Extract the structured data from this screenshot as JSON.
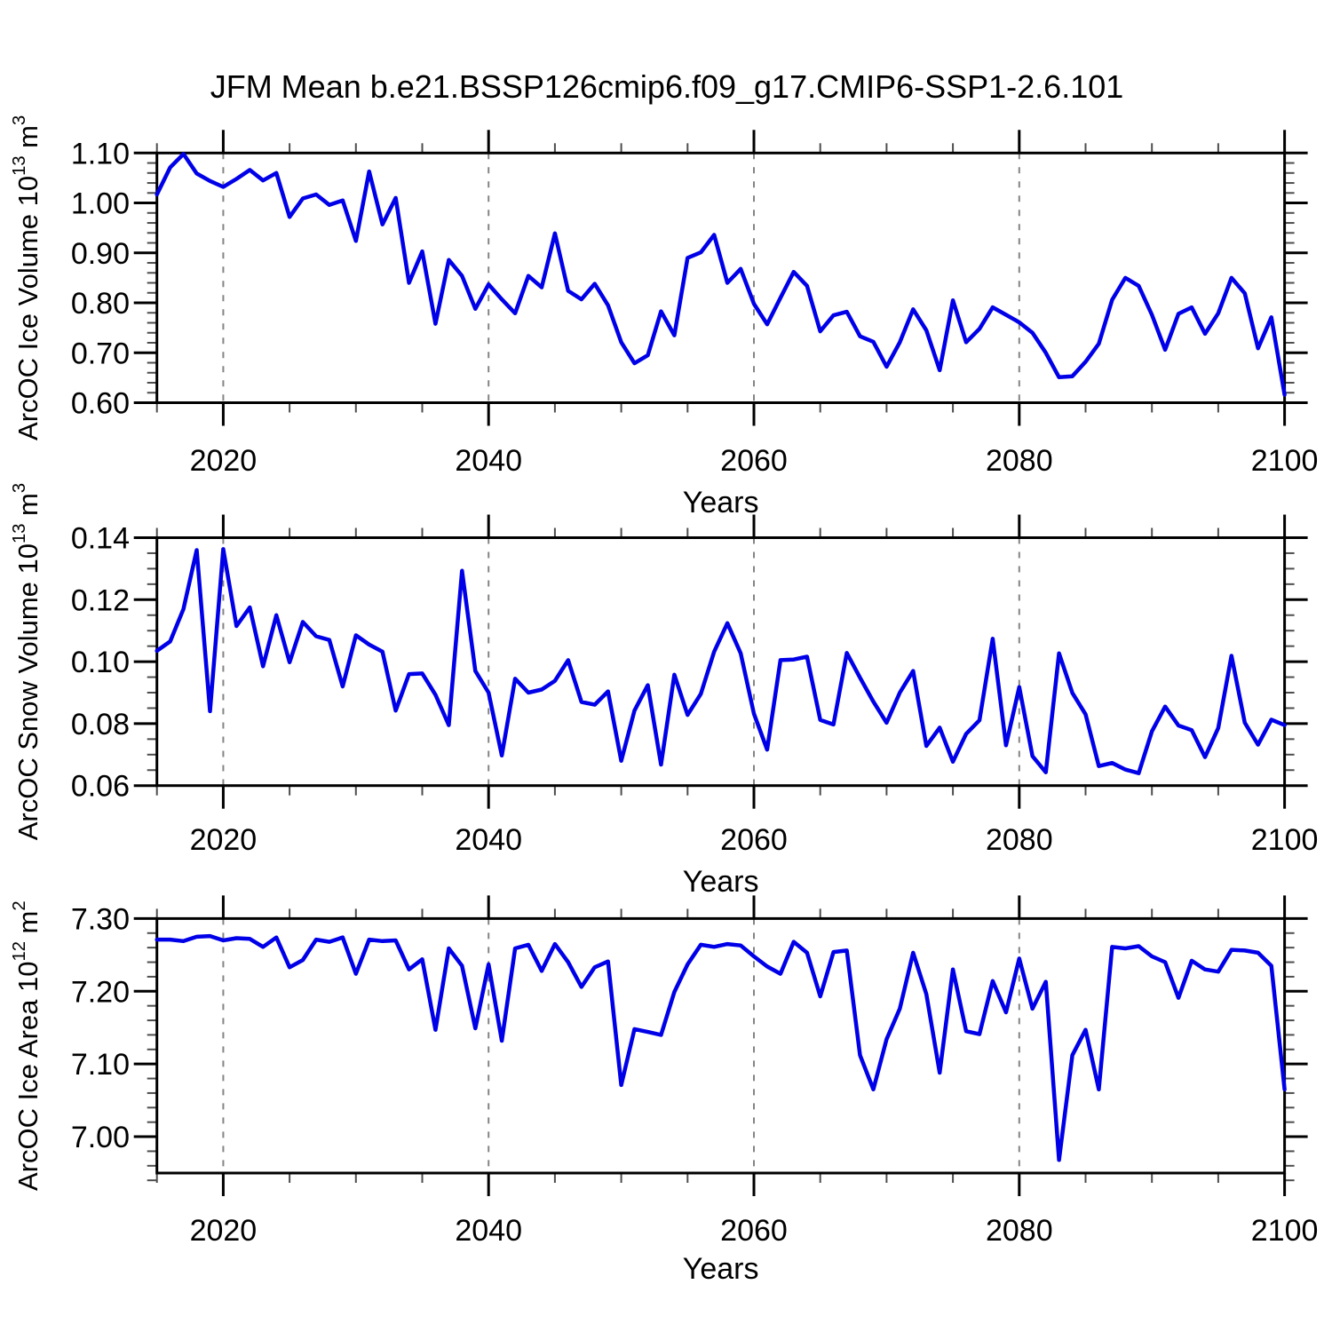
{
  "title": "JFM Mean b.e21.BSSP126cmip6.f09_g17.CMIP6-SSP1-2.6.101",
  "colors": {
    "line": "#0000e8",
    "frame": "#000000",
    "grid": "#848484",
    "minor_tick": "#4d4d4d",
    "text": "#000000",
    "background": "#ffffff"
  },
  "chart_data": [
    {
      "type": "line",
      "panel": "ice-volume",
      "ylabel": "ArcOC Ice Volume 10^{13} m^{3}",
      "xlabel": "Years",
      "x_start": 2015,
      "x_step": 1,
      "xlim": [
        2015,
        2100
      ],
      "ylim": [
        0.6,
        1.1
      ],
      "yticks": [
        0.6,
        0.7,
        0.8,
        0.9,
        1.0,
        1.1
      ],
      "ytick_labels": [
        "0.60",
        "0.70",
        "0.80",
        "0.90",
        "1.00",
        "1.10"
      ],
      "y_minor_step": 0.02,
      "xticks": [
        2020,
        2040,
        2060,
        2080,
        2100
      ],
      "xtick_labels": [
        "2020",
        "2040",
        "2060",
        "2080",
        "2100"
      ],
      "x_minor_step": 5,
      "grid_x": [
        2020,
        2040,
        2060,
        2080
      ],
      "legend": null,
      "values": [
        1.017,
        1.071,
        1.098,
        1.059,
        1.044,
        1.032,
        1.048,
        1.066,
        1.045,
        1.06,
        0.972,
        1.009,
        1.017,
        0.996,
        1.005,
        0.924,
        1.063,
        0.957,
        1.01,
        0.84,
        0.903,
        0.758,
        0.886,
        0.854,
        0.788,
        0.837,
        0.807,
        0.779,
        0.854,
        0.831,
        0.939,
        0.824,
        0.807,
        0.838,
        0.795,
        0.721,
        0.679,
        0.695,
        0.783,
        0.735,
        0.89,
        0.901,
        0.936,
        0.84,
        0.868,
        0.798,
        0.757,
        0.81,
        0.862,
        0.834,
        0.743,
        0.775,
        0.782,
        0.733,
        0.722,
        0.672,
        0.721,
        0.787,
        0.745,
        0.665,
        0.805,
        0.721,
        0.748,
        0.791,
        0.776,
        0.761,
        0.74,
        0.7,
        0.651,
        0.653,
        0.682,
        0.718,
        0.806,
        0.85,
        0.834,
        0.776,
        0.706,
        0.778,
        0.791,
        0.738,
        0.779,
        0.85,
        0.819,
        0.709,
        0.771,
        0.616
      ]
    },
    {
      "type": "line",
      "panel": "snow-volume",
      "ylabel": "ArcOC Snow Volume 10^{13} m^{3}",
      "xlabel": "Years",
      "x_start": 2015,
      "x_step": 1,
      "xlim": [
        2015,
        2100
      ],
      "ylim": [
        0.06,
        0.14
      ],
      "yticks": [
        0.06,
        0.08,
        0.1,
        0.12,
        0.14
      ],
      "ytick_labels": [
        "0.06",
        "0.08",
        "0.10",
        "0.12",
        "0.14"
      ],
      "y_minor_step": 0.005,
      "xticks": [
        2020,
        2040,
        2060,
        2080,
        2100
      ],
      "xtick_labels": [
        "2020",
        "2040",
        "2060",
        "2080",
        "2100"
      ],
      "x_minor_step": 5,
      "grid_x": [
        2020,
        2040,
        2060,
        2080
      ],
      "legend": null,
      "values": [
        0.1035,
        0.1065,
        0.117,
        0.136,
        0.084,
        0.1363,
        0.1115,
        0.1175,
        0.0985,
        0.115,
        0.0998,
        0.1128,
        0.1082,
        0.107,
        0.092,
        0.1085,
        0.1055,
        0.1032,
        0.0842,
        0.096,
        0.0962,
        0.0893,
        0.0795,
        0.1293,
        0.097,
        0.09,
        0.0697,
        0.0945,
        0.09,
        0.091,
        0.0938,
        0.1005,
        0.087,
        0.0861,
        0.0904,
        0.068,
        0.0842,
        0.0924,
        0.0668,
        0.0958,
        0.0828,
        0.0896,
        0.1032,
        0.1124,
        0.1027,
        0.0832,
        0.0716,
        0.1005,
        0.1007,
        0.1016,
        0.0812,
        0.0797,
        0.1028,
        0.0948,
        0.0871,
        0.0803,
        0.09,
        0.097,
        0.0728,
        0.0787,
        0.0677,
        0.0767,
        0.0811,
        0.1074,
        0.073,
        0.0918,
        0.0695,
        0.0643,
        0.1027,
        0.0899,
        0.083,
        0.0663,
        0.0673,
        0.0652,
        0.064,
        0.0775,
        0.0855,
        0.0794,
        0.0779,
        0.0692,
        0.0786,
        0.1019,
        0.0803,
        0.0732,
        0.0813,
        0.0795
      ]
    },
    {
      "type": "line",
      "panel": "ice-area",
      "ylabel": "ArcOC Ice Area 10^{12} m^{2}",
      "xlabel": "Years",
      "x_start": 2015,
      "x_step": 1,
      "xlim": [
        2015,
        2100
      ],
      "ylim": [
        6.95,
        7.3
      ],
      "yticks": [
        7.0,
        7.1,
        7.2,
        7.3
      ],
      "ytick_labels": [
        "7.00",
        "7.10",
        "7.20",
        "7.30"
      ],
      "y_minor_step": 0.02,
      "xticks": [
        2020,
        2040,
        2060,
        2080,
        2100
      ],
      "xtick_labels": [
        "2020",
        "2040",
        "2060",
        "2080",
        "2100"
      ],
      "x_minor_step": 5,
      "grid_x": [
        2020,
        2040,
        2060,
        2080
      ],
      "legend": null,
      "values": [
        7.271,
        7.271,
        7.269,
        7.275,
        7.276,
        7.27,
        7.273,
        7.272,
        7.261,
        7.274,
        7.233,
        7.243,
        7.271,
        7.268,
        7.274,
        7.224,
        7.271,
        7.269,
        7.27,
        7.23,
        7.244,
        7.147,
        7.259,
        7.235,
        7.149,
        7.237,
        7.132,
        7.259,
        7.264,
        7.228,
        7.265,
        7.24,
        7.206,
        7.233,
        7.241,
        7.071,
        7.148,
        7.144,
        7.14,
        7.199,
        7.237,
        7.264,
        7.261,
        7.265,
        7.263,
        7.248,
        7.234,
        7.224,
        7.268,
        7.253,
        7.193,
        7.254,
        7.256,
        7.112,
        7.065,
        7.134,
        7.176,
        7.253,
        7.196,
        7.088,
        7.23,
        7.145,
        7.141,
        7.214,
        7.171,
        7.245,
        7.176,
        7.213,
        6.968,
        7.112,
        7.147,
        7.065,
        7.261,
        7.259,
        7.262,
        7.248,
        7.24,
        7.191,
        7.242,
        7.23,
        7.227,
        7.257,
        7.256,
        7.253,
        7.235,
        7.065
      ]
    }
  ]
}
